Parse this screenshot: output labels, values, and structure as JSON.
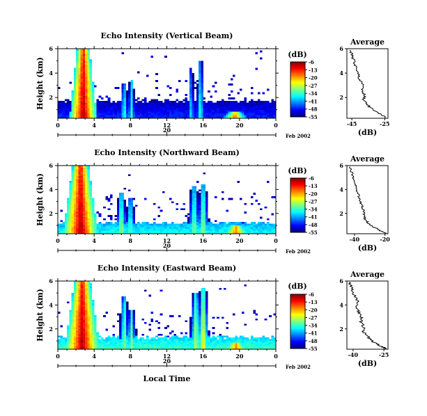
{
  "figure": {
    "xlabel": "Local Time",
    "date_label": "Feb 2002",
    "day_label": "20",
    "colorbar_unit": "(dB)",
    "colorbar_ticks": [
      "-6",
      "-13",
      "-20",
      "-27",
      "-34",
      "-41",
      "-48",
      "-55"
    ],
    "profile_title": "Average",
    "profile_xlabel": "(dB)"
  },
  "chart_data": [
    {
      "type": "heatmap",
      "title": "Echo Intensity (Vertical Beam)",
      "ylabel": "Height (km)",
      "xlim": [
        0,
        24
      ],
      "ylim": [
        0.3,
        6
      ],
      "x_ticks": [
        "0",
        "4",
        "8",
        "12",
        "16",
        "20",
        "0"
      ],
      "y_ticks": [
        "2",
        "4",
        "6"
      ],
      "color_range_db": [
        -55,
        -6
      ],
      "surface_band": {
        "top_km": 1.6,
        "level_db": -50
      },
      "convective_cells": [
        {
          "t": 2.8,
          "w": 0.7,
          "top_km": 6.0,
          "peak_db": -6
        },
        {
          "t": 7.3,
          "w": 0.35,
          "top_km": 3.2,
          "peak_db": -30
        },
        {
          "t": 8.1,
          "w": 0.3,
          "top_km": 3.5,
          "peak_db": -30
        },
        {
          "t": 14.7,
          "w": 0.25,
          "top_km": 4.5,
          "peak_db": -33
        },
        {
          "t": 15.7,
          "w": 0.3,
          "top_km": 5.0,
          "peak_db": -30
        },
        {
          "t": 19.5,
          "w": 0.8,
          "top_km": 0.9,
          "peak_db": -13
        }
      ]
    },
    {
      "type": "heatmap",
      "title": "Echo Intensity (Northward Beam)",
      "ylabel": "Height (km)",
      "xlim": [
        0,
        24
      ],
      "ylim": [
        0.3,
        6
      ],
      "x_ticks": [
        "0",
        "4",
        "8",
        "12",
        "16",
        "20",
        "0"
      ],
      "y_ticks": [
        "2",
        "4",
        "6"
      ],
      "color_range_db": [
        -55,
        -6
      ],
      "surface_band": {
        "top_km": 1.1,
        "level_db": -38
      },
      "convective_cells": [
        {
          "t": 2.5,
          "w": 0.9,
          "top_km": 6.0,
          "peak_db": -6
        },
        {
          "t": 7.0,
          "w": 0.35,
          "top_km": 3.7,
          "peak_db": -24
        },
        {
          "t": 8.0,
          "w": 0.35,
          "top_km": 3.3,
          "peak_db": -27
        },
        {
          "t": 15.0,
          "w": 0.4,
          "top_km": 4.3,
          "peak_db": -26
        },
        {
          "t": 16.0,
          "w": 0.35,
          "top_km": 4.5,
          "peak_db": -24
        },
        {
          "t": 19.6,
          "w": 0.9,
          "top_km": 1.0,
          "peak_db": -13
        }
      ]
    },
    {
      "type": "heatmap",
      "title": "Echo Intensity (Eastward Beam)",
      "ylabel": "Height (km)",
      "xlim": [
        0,
        24
      ],
      "ylim": [
        0.3,
        6
      ],
      "x_ticks": [
        "0",
        "4",
        "8",
        "12",
        "16",
        "20",
        "0"
      ],
      "y_ticks": [
        "2",
        "4",
        "6"
      ],
      "color_range_db": [
        -55,
        -6
      ],
      "surface_band": {
        "top_km": 1.2,
        "level_db": -36
      },
      "convective_cells": [
        {
          "t": 2.7,
          "w": 0.9,
          "top_km": 6.0,
          "peak_db": -6
        },
        {
          "t": 7.3,
          "w": 0.35,
          "top_km": 4.7,
          "peak_db": -26
        },
        {
          "t": 8.1,
          "w": 0.35,
          "top_km": 3.6,
          "peak_db": -26
        },
        {
          "t": 15.2,
          "w": 0.4,
          "top_km": 5.0,
          "peak_db": -24
        },
        {
          "t": 16.0,
          "w": 0.35,
          "top_km": 5.5,
          "peak_db": -20
        },
        {
          "t": 19.6,
          "w": 0.9,
          "top_km": 0.9,
          "peak_db": -13
        }
      ]
    },
    {
      "type": "line",
      "title": "Average",
      "xlabel": "(dB)",
      "xlim": [
        -48,
        -23
      ],
      "ylim": [
        0.3,
        6
      ],
      "x_ticks": [
        "-45",
        "-25"
      ],
      "y_ticks": [
        "2",
        "4",
        "6"
      ],
      "x": [
        -24,
        -27,
        -31,
        -34,
        -36,
        -38,
        -37,
        -39,
        -38,
        -40,
        -41,
        -42,
        -43,
        -44,
        -45,
        -46
      ],
      "y": [
        0.35,
        0.6,
        0.9,
        1.2,
        1.5,
        1.8,
        2.2,
        2.6,
        3.0,
        3.4,
        3.8,
        4.3,
        4.7,
        5.1,
        5.5,
        5.9
      ]
    },
    {
      "type": "line",
      "title": "Average",
      "xlabel": "(dB)",
      "xlim": [
        -45,
        -18
      ],
      "ylim": [
        0.3,
        6
      ],
      "x_ticks": [
        "-40",
        "-20"
      ],
      "y_ticks": [
        "2",
        "4",
        "6"
      ],
      "x": [
        -19,
        -24,
        -28,
        -31,
        -33,
        -34,
        -34,
        -35,
        -36,
        -37,
        -38,
        -39,
        -40,
        -41,
        -42,
        -43
      ],
      "y": [
        0.35,
        0.6,
        0.9,
        1.2,
        1.5,
        1.8,
        2.2,
        2.6,
        3.0,
        3.4,
        3.8,
        4.3,
        4.7,
        5.1,
        5.5,
        5.9
      ]
    },
    {
      "type": "line",
      "title": "Average",
      "xlabel": "(dB)",
      "xlim": [
        -43,
        -23
      ],
      "ylim": [
        0.3,
        6
      ],
      "x_ticks": [
        "-40",
        "-25"
      ],
      "y_ticks": [
        "2",
        "4",
        "6"
      ],
      "x": [
        -24,
        -27,
        -30,
        -32,
        -34,
        -35,
        -35,
        -36,
        -36,
        -37,
        -38,
        -38,
        -39,
        -40,
        -41,
        -42
      ],
      "y": [
        0.35,
        0.6,
        0.9,
        1.2,
        1.5,
        1.8,
        2.2,
        2.6,
        3.0,
        3.4,
        3.8,
        4.3,
        4.7,
        5.1,
        5.5,
        5.9
      ]
    }
  ]
}
